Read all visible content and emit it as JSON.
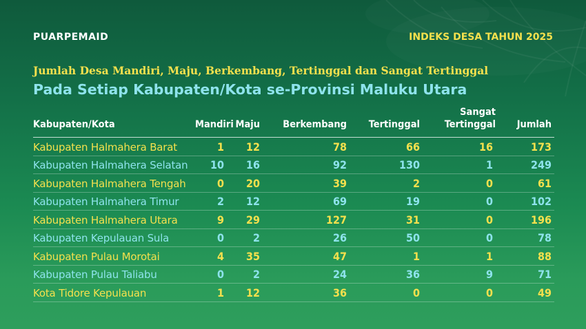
{
  "header": {
    "logo": "PUARPEMAID",
    "badge": "INDEKS DESA TAHUN 2025"
  },
  "subtitle": "Jumlah Desa Mandiri, Maju, Berkembang, Tertinggal dan Sangat Tertinggal",
  "title": "Pada Setiap Kabupaten/Kota se-Provinsi Maluku Utara",
  "colors": {
    "yellow": "#f4e04d",
    "cyan": "#8ee3ec",
    "bg_green": "#137048"
  },
  "chart_data": {
    "type": "table",
    "columns": [
      "Kabupaten/Kota",
      "Mandiri",
      "Maju",
      "Berkembang",
      "Tertinggal",
      "Sangat Tertinggal",
      "Jumlah"
    ],
    "rows": [
      [
        "Kabupaten Halmahera Barat",
        "1",
        "12",
        "78",
        "66",
        "16",
        "173"
      ],
      [
        "Kabupaten Halmahera Selatan",
        "10",
        "16",
        "92",
        "130",
        "1",
        "249"
      ],
      [
        "Kabupaten Halmahera Tengah",
        "0",
        "20",
        "39",
        "2",
        "0",
        "61"
      ],
      [
        "Kabupaten Halmahera Timur",
        "2",
        "12",
        "69",
        "19",
        "0",
        "102"
      ],
      [
        "Kabupaten Halmahera Utara",
        "9",
        "29",
        "127",
        "31",
        "0",
        "196"
      ],
      [
        "Kabupaten Kepulauan Sula",
        "0",
        "2",
        "26",
        "50",
        "0",
        "78"
      ],
      [
        "Kabupaten Pulau Morotai",
        "4",
        "35",
        "47",
        "1",
        "1",
        "88"
      ],
      [
        "Kabupaten Pulau Taliabu",
        "0",
        "2",
        "24",
        "36",
        "9",
        "71"
      ],
      [
        "Kota Tidore Kepulauan",
        "1",
        "12",
        "36",
        "0",
        "0",
        "49"
      ]
    ]
  }
}
